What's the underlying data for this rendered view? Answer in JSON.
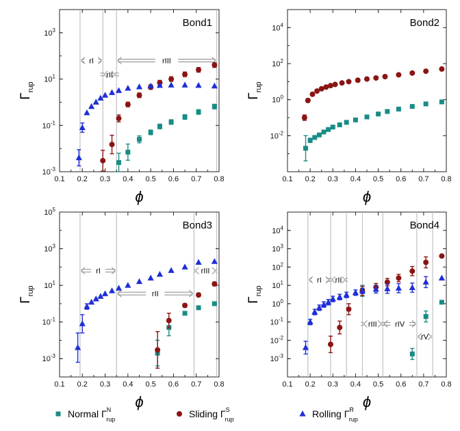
{
  "chart_data": [
    {
      "type": "scatter",
      "title": "Bond1",
      "xlabel": "ϕ",
      "ylabel": "Γ",
      "ylabel_sub": "rup",
      "xlim": [
        0.1,
        0.8
      ],
      "ylim_exp": [
        -3,
        4
      ],
      "y_scale": "log",
      "x_ticks": [
        "0.1",
        "0.2",
        "0.3",
        "0.4",
        "0.5",
        "0.6",
        "0.7",
        "0.8"
      ],
      "y_ticks": [
        {
          "e": -3
        },
        {
          "e": -1
        },
        {
          "e": 1
        },
        {
          "e": 3
        }
      ],
      "vlines": [
        0.19,
        0.29,
        0.35,
        0.79
      ],
      "regions": [
        {
          "label": "rI",
          "from": 0.19,
          "to": 0.29,
          "y_exp": 1.8
        },
        {
          "label": "rII",
          "from": 0.29,
          "to": 0.35,
          "y_exp": 1.2
        },
        {
          "label": "rIII",
          "from": 0.35,
          "to": 0.79,
          "y_exp": 1.8
        }
      ],
      "series": [
        {
          "name": "Normal Γ_rup^N",
          "marker": "square",
          "color": "#1a8c86",
          "x": [
            0.36,
            0.4,
            0.45,
            0.5,
            0.54,
            0.59,
            0.65,
            0.71,
            0.78
          ],
          "y": [
            0.0025,
            0.007,
            0.025,
            0.05,
            0.09,
            0.14,
            0.23,
            0.38,
            0.65
          ],
          "err": [
            0.4,
            0.35,
            0.15,
            0.1,
            0.1,
            0.1,
            0.1,
            0.1,
            0.1
          ]
        },
        {
          "name": "Sliding Γ_rup^S",
          "marker": "circle",
          "color": "#8b1414",
          "x": [
            0.29,
            0.33,
            0.36,
            0.4,
            0.45,
            0.5,
            0.54,
            0.59,
            0.65,
            0.71,
            0.78
          ],
          "y": [
            0.003,
            0.015,
            0.2,
            0.8,
            2.0,
            4.5,
            7.0,
            10.0,
            16.0,
            25.0,
            40.0
          ],
          "err": [
            0.45,
            0.4,
            0.15,
            0.1,
            0.1,
            0.1,
            0.1,
            0.1,
            0.1,
            0.1,
            0.1
          ]
        },
        {
          "name": "Rolling Γ_rup^R",
          "marker": "triangle",
          "color": "#1f2fd6",
          "x": [
            0.185,
            0.2,
            0.22,
            0.24,
            0.26,
            0.28,
            0.3,
            0.33,
            0.36,
            0.4,
            0.45,
            0.5,
            0.54,
            0.59,
            0.65,
            0.71,
            0.78
          ],
          "y": [
            0.004,
            0.08,
            0.35,
            0.65,
            1.0,
            1.5,
            2.0,
            2.6,
            3.2,
            4.0,
            4.6,
            5.0,
            5.3,
            5.5,
            5.5,
            5.3,
            5.0
          ],
          "err": [
            0.35,
            0.2,
            0,
            0,
            0,
            0,
            0,
            0,
            0,
            0,
            0,
            0,
            0,
            0,
            0,
            0,
            0
          ]
        }
      ]
    },
    {
      "type": "scatter",
      "title": "Bond2",
      "xlabel": "ϕ",
      "ylabel": "Γ",
      "ylabel_sub": "rup",
      "xlim": [
        0.1,
        0.8
      ],
      "ylim_exp": [
        -4,
        5
      ],
      "y_scale": "log",
      "x_ticks": [
        "0.1",
        "0.2",
        "0.3",
        "0.4",
        "0.5",
        "0.6",
        "0.7",
        "0.8"
      ],
      "y_ticks": [
        {
          "e": -2
        },
        {
          "e": 0
        },
        {
          "e": 2
        },
        {
          "e": 4
        }
      ],
      "vlines": [],
      "regions": [],
      "series": [
        {
          "name": "Normal Γ_rup^N",
          "marker": "square",
          "color": "#1a8c86",
          "x": [
            0.18,
            0.2,
            0.22,
            0.24,
            0.26,
            0.28,
            0.3,
            0.33,
            0.36,
            0.4,
            0.45,
            0.5,
            0.54,
            0.59,
            0.65,
            0.71,
            0.78
          ],
          "y": [
            0.002,
            0.0055,
            0.008,
            0.011,
            0.016,
            0.022,
            0.03,
            0.04,
            0.055,
            0.075,
            0.11,
            0.16,
            0.22,
            0.3,
            0.42,
            0.58,
            0.75
          ],
          "err": [
            0.7,
            0.12,
            0.1,
            0,
            0,
            0,
            0,
            0,
            0,
            0,
            0,
            0,
            0,
            0,
            0,
            0,
            0
          ]
        },
        {
          "name": "Sliding Γ_rup^S",
          "marker": "circle",
          "color": "#8b1414",
          "x": [
            0.175,
            0.19,
            0.21,
            0.23,
            0.25,
            0.27,
            0.29,
            0.31,
            0.34,
            0.37,
            0.41,
            0.45,
            0.49,
            0.53,
            0.59,
            0.65,
            0.71,
            0.78
          ],
          "y": [
            0.1,
            0.9,
            2.0,
            3.0,
            4.0,
            5.0,
            6.0,
            7.0,
            8.5,
            10.0,
            12.0,
            14.0,
            16.0,
            19.0,
            24.0,
            30.0,
            38.0,
            50.0
          ],
          "err": [
            0.15,
            0.1,
            0,
            0,
            0,
            0,
            0,
            0,
            0,
            0,
            0,
            0,
            0,
            0,
            0,
            0,
            0,
            0
          ]
        }
      ]
    },
    {
      "type": "scatter",
      "title": "Bond3",
      "xlabel": "ϕ",
      "ylabel": "Γ",
      "ylabel_sub": "rup",
      "xlim": [
        0.1,
        0.8
      ],
      "ylim_exp": [
        -4,
        5
      ],
      "y_scale": "log",
      "x_ticks": [
        "0.1",
        "0.2",
        "0.3",
        "0.4",
        "0.5",
        "0.6",
        "0.7",
        "0.8"
      ],
      "y_ticks": [
        {
          "e": -3
        },
        {
          "e": -1
        },
        {
          "e": 1
        },
        {
          "e": 3
        },
        {
          "e": 5
        }
      ],
      "vlines": [
        0.19,
        0.35,
        0.69,
        0.79
      ],
      "regions": [
        {
          "label": "rI",
          "from": 0.19,
          "to": 0.35,
          "y_exp": 1.8
        },
        {
          "label": "rII",
          "from": 0.35,
          "to": 0.69,
          "y_exp": 0.55
        },
        {
          "label": "rIII",
          "from": 0.69,
          "to": 0.79,
          "y_exp": 1.8
        }
      ],
      "series": [
        {
          "name": "Normal Γ_rup^N",
          "marker": "square",
          "color": "#1a8c86",
          "x": [
            0.53,
            0.58,
            0.65,
            0.71,
            0.78
          ],
          "y": [
            0.002,
            0.05,
            0.3,
            0.6,
            1.0
          ],
          "err": [
            0.7,
            0.45,
            0.1,
            0.1,
            0.1
          ]
        },
        {
          "name": "Sliding Γ_rup^S",
          "marker": "circle",
          "color": "#8b1414",
          "x": [
            0.53,
            0.58,
            0.65,
            0.71,
            0.78
          ],
          "y": [
            0.003,
            0.12,
            0.8,
            3.0,
            12.0
          ],
          "err": [
            1.0,
            0.4,
            0.1,
            0.1,
            0.1
          ]
        },
        {
          "name": "Rolling Γ_rup^R",
          "marker": "triangle",
          "color": "#1f2fd6",
          "x": [
            0.18,
            0.2,
            0.22,
            0.24,
            0.26,
            0.28,
            0.3,
            0.33,
            0.36,
            0.4,
            0.45,
            0.5,
            0.54,
            0.59,
            0.65,
            0.71,
            0.78
          ],
          "y": [
            0.004,
            0.08,
            0.7,
            1.2,
            1.8,
            2.5,
            3.5,
            5.0,
            7.0,
            10.0,
            16.0,
            25.0,
            40.0,
            65.0,
            100.0,
            180.0,
            200.0
          ],
          "err": [
            0.8,
            0.5,
            0.15,
            0,
            0,
            0,
            0,
            0,
            0,
            0,
            0,
            0,
            0,
            0,
            0,
            0,
            0
          ]
        }
      ]
    },
    {
      "type": "scatter",
      "title": "Bond4",
      "xlabel": "ϕ",
      "ylabel": "Γ",
      "ylabel_sub": "rup",
      "xlim": [
        0.1,
        0.8
      ],
      "ylim_exp": [
        -4,
        5
      ],
      "y_scale": "log",
      "x_ticks": [
        "0.1",
        "0.2",
        "0.3",
        "0.4",
        "0.5",
        "0.6",
        "0.7",
        "0.8"
      ],
      "y_ticks": [
        {
          "e": -3
        },
        {
          "e": -2
        },
        {
          "e": -1
        },
        {
          "e": 0
        },
        {
          "e": 1
        },
        {
          "e": 2
        },
        {
          "e": 3
        },
        {
          "e": 4
        }
      ],
      "vlines": [
        0.19,
        0.29,
        0.36,
        0.43,
        0.52,
        0.67,
        0.74
      ],
      "regions": [
        {
          "label": "rI",
          "from": 0.19,
          "to": 0.29,
          "y_exp": 1.3
        },
        {
          "label": "rII",
          "from": 0.29,
          "to": 0.36,
          "y_exp": 1.3
        },
        {
          "label": "rIII",
          "from": 0.43,
          "to": 0.52,
          "y_exp": -1.1
        },
        {
          "label": "rIV",
          "from": 0.52,
          "to": 0.67,
          "y_exp": -1.1
        },
        {
          "label": "rV",
          "from": 0.67,
          "to": 0.74,
          "y_exp": -1.8
        }
      ],
      "series": [
        {
          "name": "Normal Γ_rup^N",
          "marker": "square",
          "color": "#1a8c86",
          "x": [
            0.43,
            0.65,
            0.71,
            0.78
          ],
          "y": [
            5.0,
            0.0018,
            0.2,
            1.2
          ],
          "err": [
            0.3,
            0.3,
            0.3,
            0
          ]
        },
        {
          "name": "Sliding Γ_rup^S",
          "marker": "circle",
          "color": "#8b1414",
          "x": [
            0.29,
            0.33,
            0.37,
            0.43,
            0.49,
            0.54,
            0.59,
            0.65,
            0.71,
            0.78
          ],
          "y": [
            0.006,
            0.05,
            0.5,
            5.0,
            8.0,
            15.0,
            25.0,
            60.0,
            180.0,
            400.0
          ],
          "err": [
            0.45,
            0.35,
            0.3,
            0.25,
            0.2,
            0.2,
            0.2,
            0.25,
            0.3,
            0
          ]
        },
        {
          "name": "Rolling Γ_rup^R",
          "marker": "triangle",
          "color": "#1f2fd6",
          "x": [
            0.18,
            0.2,
            0.22,
            0.24,
            0.26,
            0.28,
            0.3,
            0.33,
            0.36,
            0.4,
            0.43,
            0.49,
            0.54,
            0.59,
            0.65,
            0.71,
            0.78
          ],
          "y": [
            0.004,
            0.1,
            0.35,
            0.6,
            0.9,
            1.2,
            1.8,
            2.3,
            3.0,
            4.0,
            5.0,
            6.0,
            6.5,
            7.0,
            7.5,
            15.0,
            25.0
          ],
          "err": [
            0.35,
            0.15,
            0.15,
            0.15,
            0.15,
            0.15,
            0.15,
            0.15,
            0.15,
            0.15,
            0.15,
            0.2,
            0.25,
            0.25,
            0.25,
            0.3,
            0
          ]
        }
      ]
    }
  ],
  "legend": {
    "items": [
      {
        "label": "Normal Γ",
        "sup": "N",
        "sub": "rup",
        "marker": "square",
        "color": "#1a8c86"
      },
      {
        "label": "Sliding Γ",
        "sup": "S",
        "sub": "rup",
        "marker": "circle",
        "color": "#8b1414"
      },
      {
        "label": "Rolling Γ",
        "sup": "R",
        "sub": "rup",
        "marker": "triangle",
        "color": "#1f2fd6"
      }
    ]
  }
}
